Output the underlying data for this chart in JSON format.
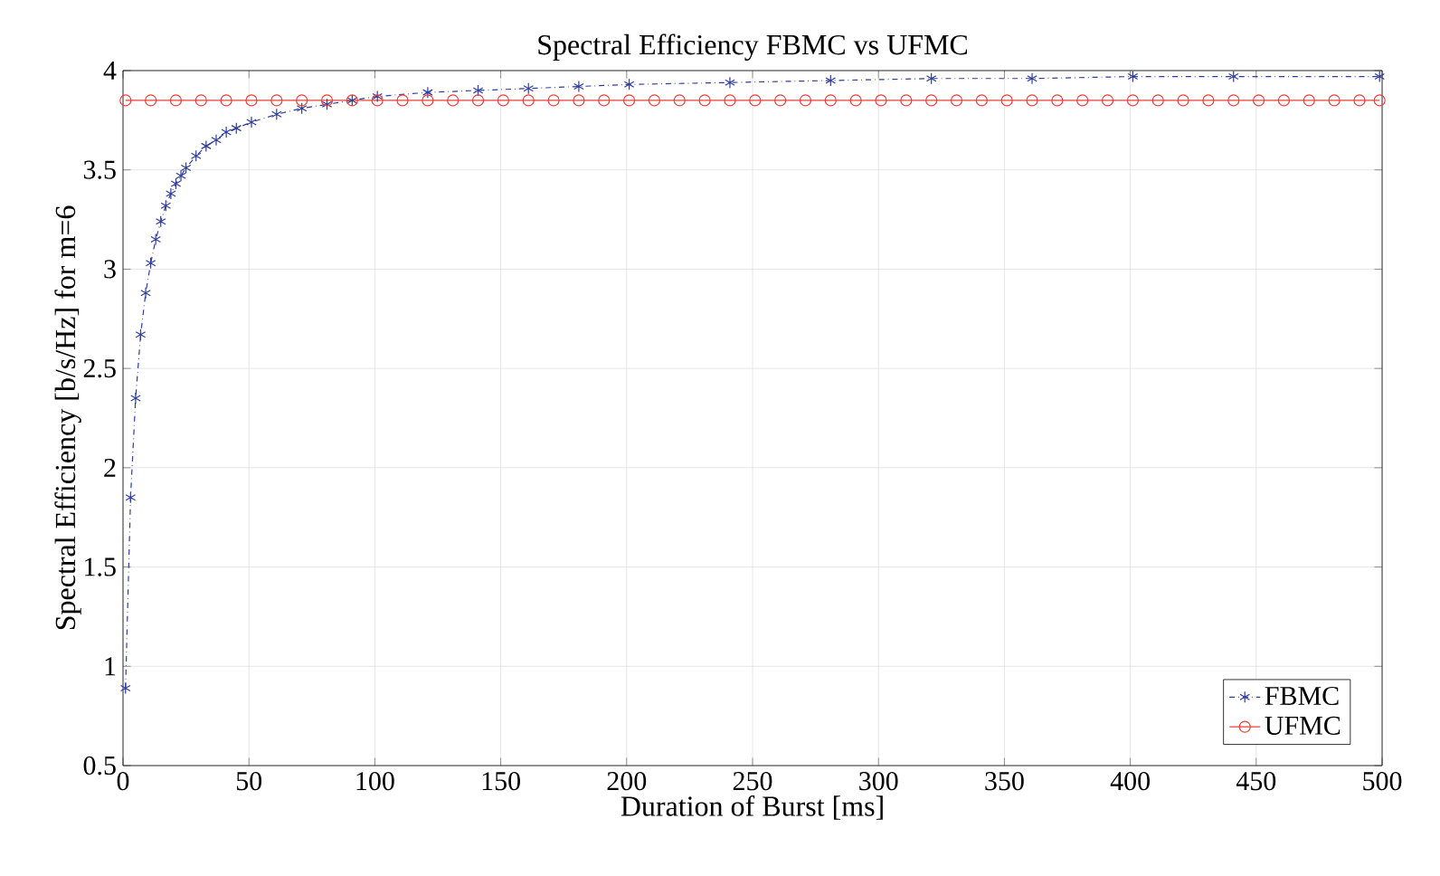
{
  "chart_data": {
    "type": "line",
    "title": "Spectral Efficiency FBMC vs UFMC",
    "xlabel": "Duration of Burst [ms]",
    "ylabel": "Spectral Efficiency [b/s/Hz] for m=6",
    "xlim": [
      0,
      500
    ],
    "ylim": [
      0.5,
      4
    ],
    "xticks": [
      0,
      50,
      100,
      150,
      200,
      250,
      300,
      350,
      400,
      450,
      500
    ],
    "yticks": [
      0.5,
      1,
      1.5,
      2,
      2.5,
      3,
      3.5,
      4
    ],
    "grid": true,
    "legend": "bottom right",
    "series": [
      {
        "name": "FBMC",
        "color": "#2e3d9a",
        "marker": "cross",
        "line_style": "dashed",
        "x": [
          1,
          3,
          5,
          7,
          9,
          11,
          13,
          15,
          17,
          19,
          21,
          23,
          25,
          29,
          33,
          37,
          41,
          45,
          51,
          61,
          71,
          81,
          91,
          101,
          121,
          141,
          161,
          181,
          201,
          241,
          281,
          321,
          361,
          401,
          441,
          499
        ],
        "values": [
          0.89,
          1.85,
          2.35,
          2.67,
          2.88,
          3.03,
          3.15,
          3.24,
          3.32,
          3.38,
          3.43,
          3.47,
          3.51,
          3.57,
          3.62,
          3.65,
          3.69,
          3.71,
          3.74,
          3.78,
          3.81,
          3.83,
          3.85,
          3.87,
          3.89,
          3.9,
          3.91,
          3.92,
          3.93,
          3.94,
          3.95,
          3.96,
          3.96,
          3.97,
          3.97,
          3.97
        ]
      },
      {
        "name": "UFMC",
        "color": "#e8413a",
        "marker": "circle",
        "line_style": "solid",
        "x": [
          1,
          11,
          21,
          31,
          41,
          51,
          61,
          71,
          81,
          91,
          101,
          111,
          121,
          131,
          141,
          151,
          161,
          171,
          181,
          191,
          201,
          211,
          221,
          231,
          241,
          251,
          261,
          271,
          281,
          291,
          301,
          311,
          321,
          331,
          341,
          351,
          361,
          371,
          381,
          391,
          401,
          411,
          421,
          431,
          441,
          451,
          461,
          471,
          481,
          491,
          499
        ],
        "values": [
          3.85,
          3.85,
          3.85,
          3.85,
          3.85,
          3.85,
          3.85,
          3.85,
          3.85,
          3.85,
          3.85,
          3.85,
          3.85,
          3.85,
          3.85,
          3.85,
          3.85,
          3.85,
          3.85,
          3.85,
          3.85,
          3.85,
          3.85,
          3.85,
          3.85,
          3.85,
          3.85,
          3.85,
          3.85,
          3.85,
          3.85,
          3.85,
          3.85,
          3.85,
          3.85,
          3.85,
          3.85,
          3.85,
          3.85,
          3.85,
          3.85,
          3.85,
          3.85,
          3.85,
          3.85,
          3.85,
          3.85,
          3.85,
          3.85,
          3.85,
          3.85
        ]
      }
    ]
  }
}
